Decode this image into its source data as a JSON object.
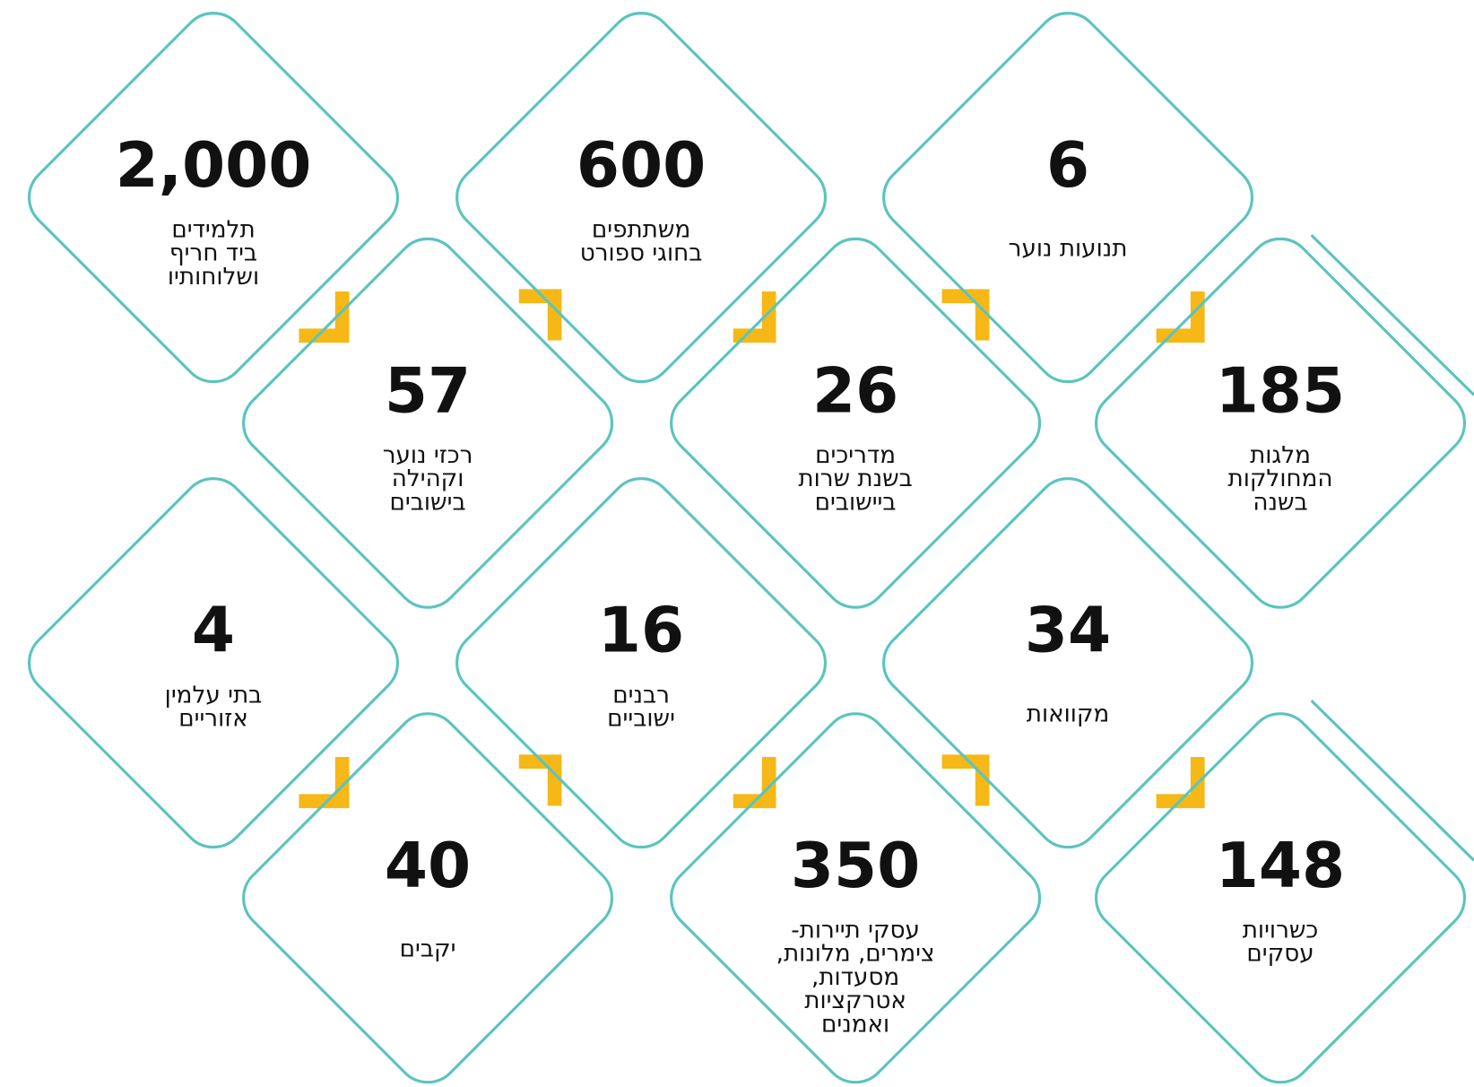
{
  "items": [
    {
      "number": "2,000",
      "label": [
        "תלמידים",
        "ביד חריף",
        "ושלוחותיו"
      ]
    },
    {
      "number": "600",
      "label": [
        "משתתפים",
        "בחוגי ספורט"
      ]
    },
    {
      "number": "6",
      "label": [
        "תנועות נוער"
      ]
    },
    {
      "number": "57",
      "label": [
        "רכזי נוער",
        "וקהילה",
        "בישובים"
      ]
    },
    {
      "number": "26",
      "label": [
        "מדריכים",
        "בשנת שרות",
        "ביישובים"
      ]
    },
    {
      "number": "185",
      "label": [
        "מלגות",
        "המחולקות",
        "בשנה"
      ]
    },
    {
      "number": "4",
      "label": [
        "בתי עלמין",
        "אזוריים"
      ]
    },
    {
      "number": "16",
      "label": [
        "רבנים",
        "ישוביים"
      ]
    },
    {
      "number": "34",
      "label": [
        "מקוואות"
      ]
    },
    {
      "number": "40",
      "label": [
        "יקבים"
      ]
    },
    {
      "number": "350",
      "label": [
        "עסקי תיירות-",
        "צימרים, מלונות,",
        "מסעדות,",
        "אטרקציות",
        "ואמנים"
      ]
    },
    {
      "number": "148",
      "label": [
        "כשרויות",
        "עסקים"
      ]
    }
  ]
}
